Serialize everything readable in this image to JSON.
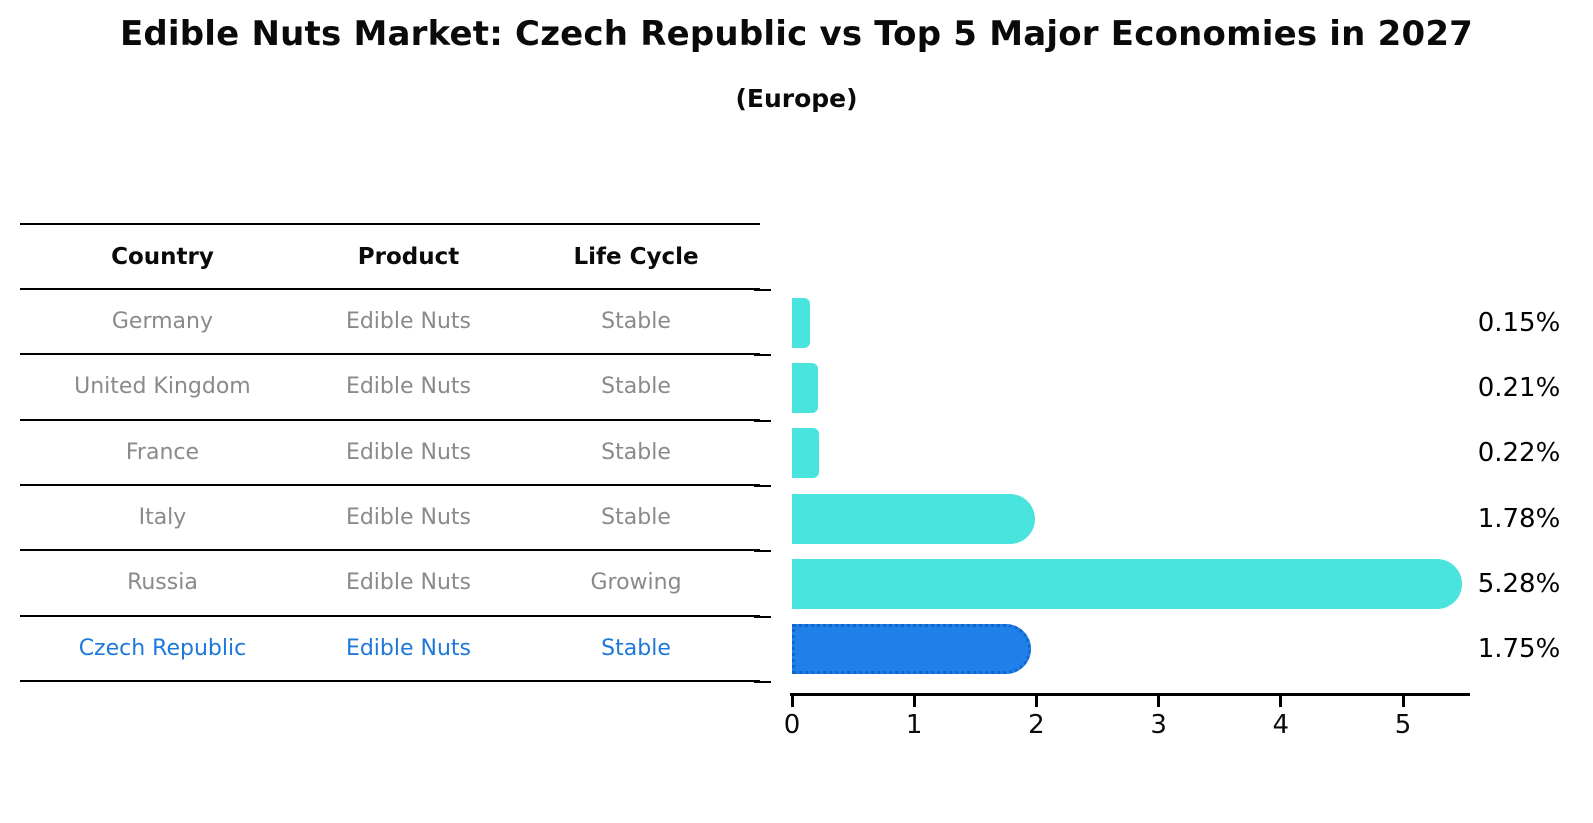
{
  "header": {
    "title": "Edible Nuts Market: Czech Republic vs Top 5 Major Economies in 2027",
    "subtitle": "(Europe)"
  },
  "table": {
    "columns": [
      "Country",
      "Product",
      "Life Cycle"
    ],
    "rows": [
      {
        "country": "Germany",
        "product": "Edible Nuts",
        "life_cycle": "Stable",
        "highlight": false
      },
      {
        "country": "United Kingdom",
        "product": "Edible Nuts",
        "life_cycle": "Stable",
        "highlight": false
      },
      {
        "country": "France",
        "product": "Edible Nuts",
        "life_cycle": "Stable",
        "highlight": false
      },
      {
        "country": "Italy",
        "product": "Edible Nuts",
        "life_cycle": "Stable",
        "highlight": false
      },
      {
        "country": "Russia",
        "product": "Edible Nuts",
        "life_cycle": "Growing",
        "highlight": false
      },
      {
        "country": "Czech Republic",
        "product": "Edible Nuts",
        "life_cycle": "Stable",
        "highlight": true
      }
    ]
  },
  "chart_data": {
    "type": "bar",
    "orientation": "horizontal",
    "title": "Edible Nuts Market: Czech Republic vs Top 5 Major Economies in 2027",
    "subtitle": "(Europe)",
    "categories": [
      "Germany",
      "United Kingdom",
      "France",
      "Italy",
      "Russia",
      "Czech Republic"
    ],
    "values": [
      0.15,
      0.21,
      0.22,
      1.78,
      5.28,
      1.75
    ],
    "value_labels": [
      "0.15%",
      "0.21%",
      "0.22%",
      "1.78%",
      "5.28%",
      "1.75%"
    ],
    "x_ticks": [
      "0",
      "1",
      "2",
      "3",
      "4",
      "5"
    ],
    "xlim": [
      0,
      5.55
    ],
    "grid": false,
    "legend": false,
    "bar_color": "#4ae4de",
    "highlight_index": 5,
    "highlight_color": "#1e80e8",
    "highlight_border_color": "#1266cc",
    "row_text_color": "#8a8a8a",
    "highlight_text_color": "#1d78d9"
  }
}
